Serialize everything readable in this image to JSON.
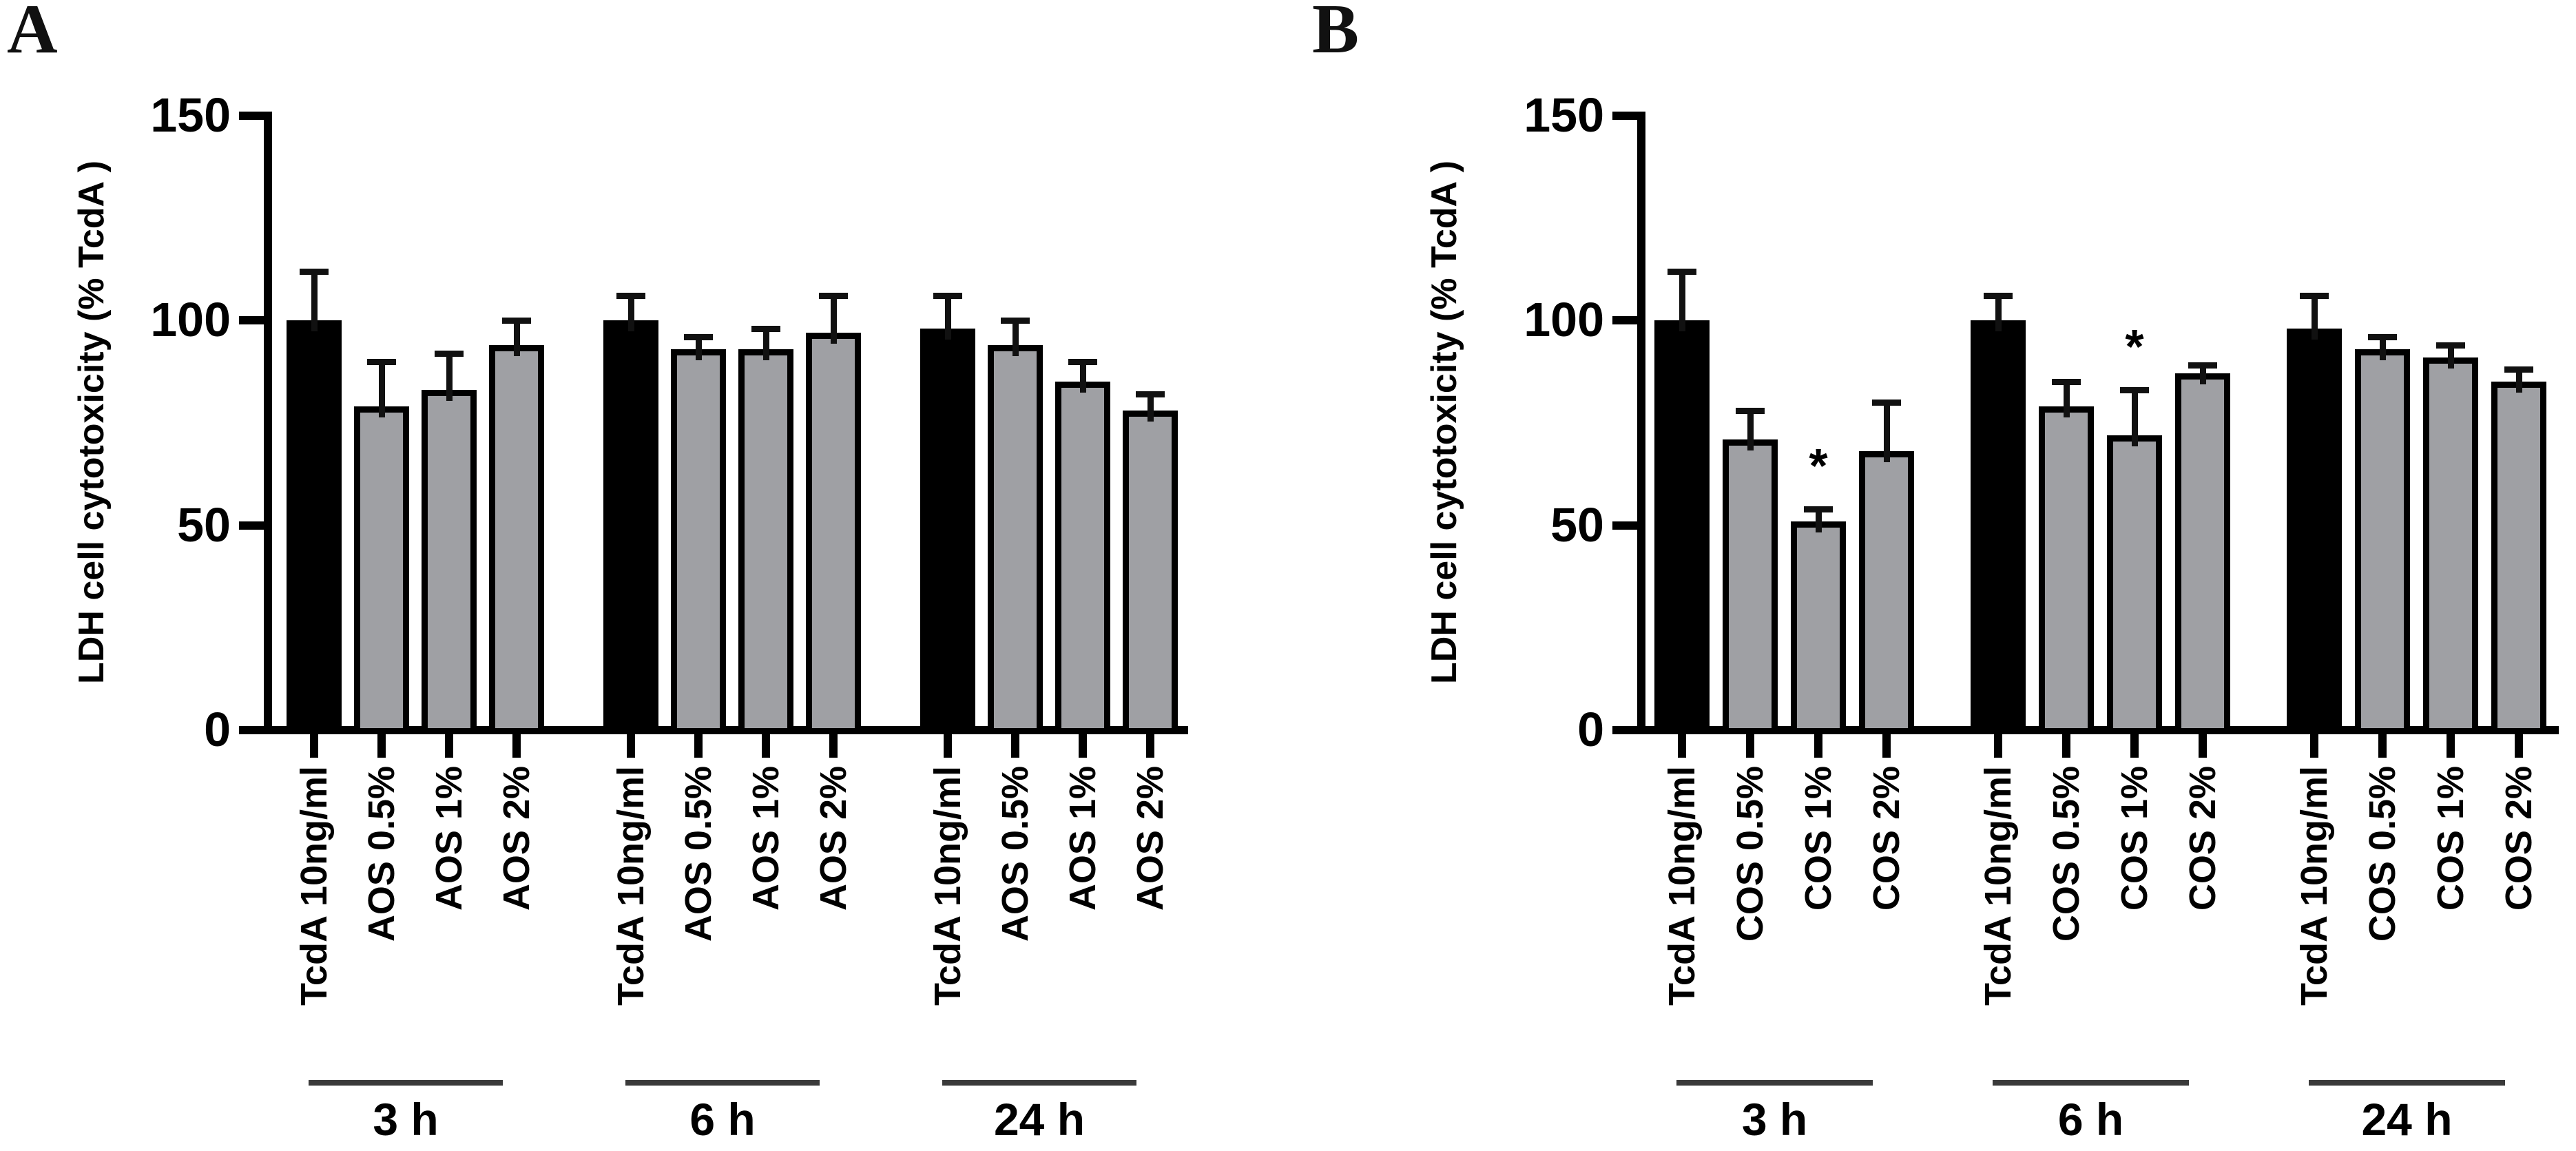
{
  "figure": {
    "panel_a_letter": "A",
    "panel_b_letter": "B"
  },
  "chart_data": [
    {
      "type": "bar",
      "panel_label": "A",
      "title": "",
      "xlabel": "",
      "ylabel": "LDH cell cytotoxicity (% TcdA )",
      "ylim": [
        0,
        150
      ],
      "yticks": [
        0,
        50,
        100,
        150
      ],
      "grid": "off",
      "legend": "none",
      "time_groups": [
        "3 h",
        "6 h",
        "24 h"
      ],
      "categories": [
        "TcdA 10ng/ml",
        "AOS 0.5%",
        "AOS 1%",
        "AOS 2%",
        "TcdA 10ng/ml",
        "AOS 0.5%",
        "AOS 1%",
        "AOS 2%",
        "TcdA 10ng/ml",
        "AOS 0.5%",
        "AOS 1%",
        "AOS 2%"
      ],
      "values": [
        100,
        79,
        83,
        94,
        100,
        93,
        93,
        97,
        98,
        94,
        85,
        78
      ],
      "errors_upper": [
        12,
        11,
        9,
        6,
        6,
        3,
        5,
        9,
        8,
        6,
        5,
        4
      ],
      "significance": [
        "",
        "",
        "",
        "",
        "",
        "",
        "",
        "",
        "",
        "",
        "",
        ""
      ],
      "bar_colors": [
        "#000000",
        "#9fa0a4",
        "#9fa0a4",
        "#9fa0a4",
        "#000000",
        "#9fa0a4",
        "#9fa0a4",
        "#9fa0a4",
        "#000000",
        "#9fa0a4",
        "#9fa0a4",
        "#9fa0a4"
      ]
    },
    {
      "type": "bar",
      "panel_label": "B",
      "title": "",
      "xlabel": "",
      "ylabel": "LDH cell cytotoxicity (% TcdA )",
      "ylim": [
        0,
        150
      ],
      "yticks": [
        0,
        50,
        100,
        150
      ],
      "grid": "off",
      "legend": "none",
      "time_groups": [
        "3 h",
        "6 h",
        "24 h"
      ],
      "categories": [
        "TcdA 10ng/ml",
        "COS 0.5%",
        "COS 1%",
        "COS 2%",
        "TcdA 10ng/ml",
        "COS 0.5%",
        "COS 1%",
        "COS 2%",
        "TcdA 10ng/ml",
        "COS 0.5%",
        "COS 1%",
        "COS 2%"
      ],
      "values": [
        100,
        71,
        51,
        68,
        100,
        79,
        72,
        87,
        98,
        93,
        91,
        85
      ],
      "errors_upper": [
        12,
        7,
        3,
        12,
        6,
        6,
        11,
        2,
        8,
        3,
        3,
        3
      ],
      "significance": [
        "",
        "",
        "*",
        "",
        "",
        "",
        "*",
        "",
        "",
        "",
        "",
        ""
      ],
      "bar_colors": [
        "#000000",
        "#9fa0a4",
        "#9fa0a4",
        "#9fa0a4",
        "#000000",
        "#9fa0a4",
        "#9fa0a4",
        "#9fa0a4",
        "#000000",
        "#9fa0a4",
        "#9fa0a4",
        "#9fa0a4"
      ]
    }
  ]
}
